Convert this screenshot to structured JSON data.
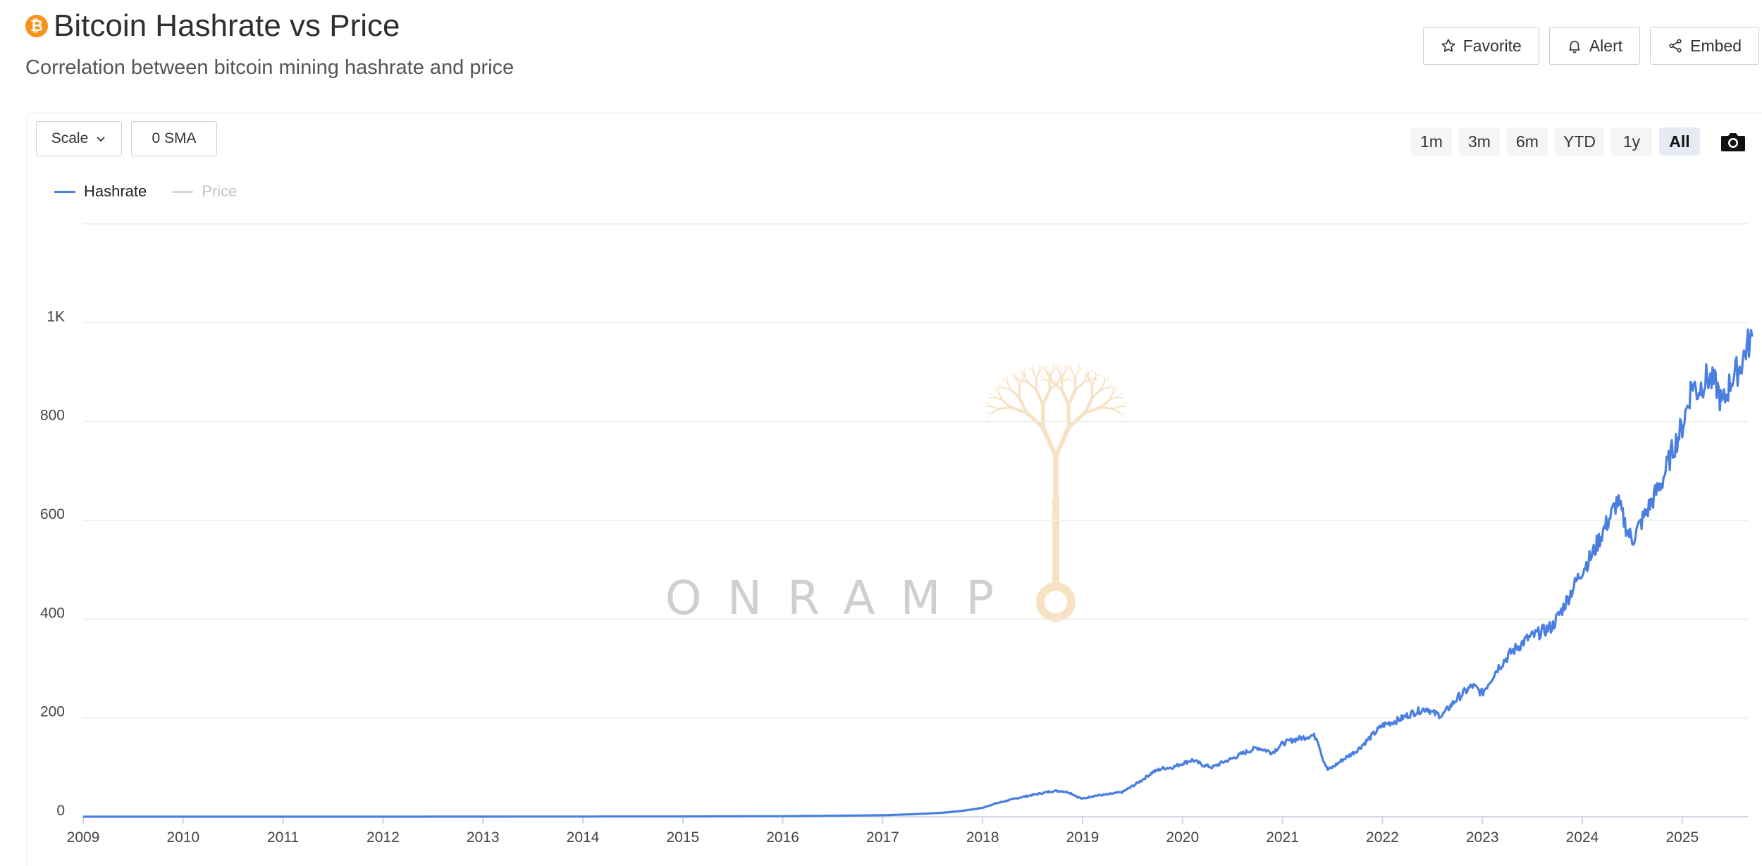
{
  "header": {
    "title": "Bitcoin Hashrate vs Price",
    "subtitle": "Correlation between bitcoin mining hashrate and price",
    "icon": "bitcoin-icon"
  },
  "actions": {
    "favorite": "Favorite",
    "alert": "Alert",
    "embed": "Embed"
  },
  "controls": {
    "scale": "Scale",
    "sma": "0 SMA",
    "ranges": [
      "1m",
      "3m",
      "6m",
      "YTD",
      "1y",
      "All"
    ],
    "active_range": "All"
  },
  "watermark": "ONRAMP",
  "colors": {
    "hashrate": "#4a7fe0",
    "price_legend": "#d8d8d8",
    "accent": "#f7931a"
  },
  "chart_data": {
    "type": "line",
    "ylim": [
      0,
      1200
    ],
    "xlim": [
      2009,
      2025.7
    ],
    "y_ticks": [
      {
        "value": 0,
        "label": "0"
      },
      {
        "value": 200,
        "label": "200"
      },
      {
        "value": 400,
        "label": "400"
      },
      {
        "value": 600,
        "label": "600"
      },
      {
        "value": 800,
        "label": "800"
      },
      {
        "value": 1000,
        "label": "1K"
      }
    ],
    "x_ticks": [
      "2009",
      "2010",
      "2011",
      "2012",
      "2013",
      "2014",
      "2015",
      "2016",
      "2017",
      "2018",
      "2019",
      "2020",
      "2021",
      "2022",
      "2023",
      "2024",
      "2025"
    ],
    "series": [
      {
        "name": "Hashrate",
        "visible": true,
        "points": [
          [
            2009,
            0
          ],
          [
            2012,
            0
          ],
          [
            2015,
            0.5
          ],
          [
            2016,
            1
          ],
          [
            2016.5,
            2
          ],
          [
            2017,
            3
          ],
          [
            2017.3,
            5
          ],
          [
            2017.6,
            8
          ],
          [
            2017.8,
            12
          ],
          [
            2018,
            18
          ],
          [
            2018.1,
            25
          ],
          [
            2018.25,
            33
          ],
          [
            2018.4,
            40
          ],
          [
            2018.55,
            46
          ],
          [
            2018.7,
            52
          ],
          [
            2018.8,
            52
          ],
          [
            2018.88,
            48
          ],
          [
            2018.95,
            40
          ],
          [
            2019.0,
            36
          ],
          [
            2019.1,
            42
          ],
          [
            2019.25,
            45
          ],
          [
            2019.4,
            50
          ],
          [
            2019.5,
            62
          ],
          [
            2019.6,
            75
          ],
          [
            2019.7,
            90
          ],
          [
            2019.8,
            98
          ],
          [
            2019.9,
            100
          ],
          [
            2020.0,
            108
          ],
          [
            2020.1,
            115
          ],
          [
            2020.2,
            105
          ],
          [
            2020.3,
            100
          ],
          [
            2020.4,
            110
          ],
          [
            2020.5,
            118
          ],
          [
            2020.6,
            128
          ],
          [
            2020.75,
            140
          ],
          [
            2020.9,
            130
          ],
          [
            2021.0,
            148
          ],
          [
            2021.1,
            155
          ],
          [
            2021.2,
            160
          ],
          [
            2021.3,
            165
          ],
          [
            2021.35,
            158
          ],
          [
            2021.4,
            120
          ],
          [
            2021.45,
            95
          ],
          [
            2021.5,
            100
          ],
          [
            2021.6,
            115
          ],
          [
            2021.75,
            135
          ],
          [
            2021.9,
            165
          ],
          [
            2022.0,
            185
          ],
          [
            2022.15,
            195
          ],
          [
            2022.3,
            210
          ],
          [
            2022.45,
            220
          ],
          [
            2022.5,
            210
          ],
          [
            2022.6,
            205
          ],
          [
            2022.75,
            240
          ],
          [
            2022.9,
            265
          ],
          [
            2023.0,
            250
          ],
          [
            2023.15,
            300
          ],
          [
            2023.3,
            335
          ],
          [
            2023.45,
            360
          ],
          [
            2023.6,
            375
          ],
          [
            2023.7,
            385
          ],
          [
            2023.8,
            420
          ],
          [
            2023.9,
            460
          ],
          [
            2024.0,
            500
          ],
          [
            2024.1,
            530
          ],
          [
            2024.2,
            575
          ],
          [
            2024.3,
            615
          ],
          [
            2024.35,
            640
          ],
          [
            2024.45,
            580
          ],
          [
            2024.5,
            560
          ],
          [
            2024.6,
            600
          ],
          [
            2024.7,
            640
          ],
          [
            2024.8,
            680
          ],
          [
            2024.9,
            740
          ],
          [
            2025.0,
            790
          ],
          [
            2025.05,
            830
          ],
          [
            2025.1,
            880
          ],
          [
            2025.15,
            860
          ],
          [
            2025.25,
            890
          ],
          [
            2025.35,
            870
          ],
          [
            2025.4,
            830
          ],
          [
            2025.5,
            890
          ],
          [
            2025.58,
            910
          ],
          [
            2025.65,
            955
          ],
          [
            2025.7,
            965
          ]
        ]
      },
      {
        "name": "Price",
        "visible": false,
        "points": []
      }
    ]
  }
}
